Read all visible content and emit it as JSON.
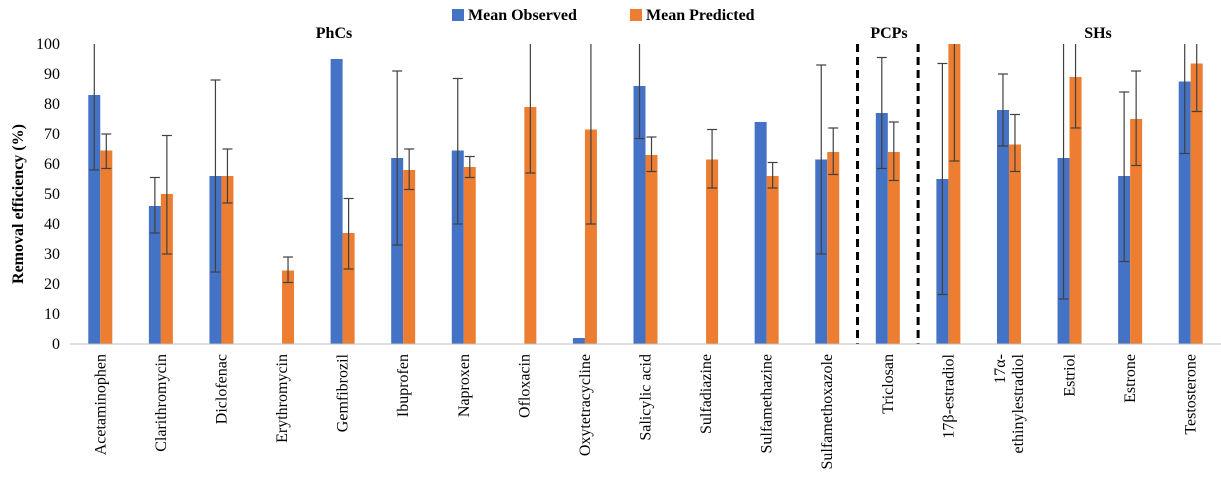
{
  "chart_data": {
    "type": "bar",
    "ylabel": "Removal efficiency (%)",
    "ylim": [
      0,
      100
    ],
    "yticks": [
      0,
      10,
      20,
      30,
      40,
      50,
      60,
      70,
      80,
      90,
      100
    ],
    "grid": false,
    "legend_position": "top",
    "categories": [
      "Acetaminophen",
      "Clarithromycin",
      "Diclofenac",
      "Erythromycin",
      "Gemfibrozil",
      "Ibuprofen",
      "Naproxen",
      "Ofloxacin",
      "Oxytetracycline",
      "Salicylic acid",
      "Sulfadiazine",
      "Sulfamethazine",
      "Sulfamethoxazole",
      "Triclosan",
      "17β-estradiol",
      "17α-ethinylestradiol",
      "Estriol",
      "Estrone",
      "Testosterone"
    ],
    "category_lines": [
      [
        "Acetaminophen"
      ],
      [
        "Clarithromycin"
      ],
      [
        "Diclofenac"
      ],
      [
        "Erythromycin"
      ],
      [
        "Gemfibrozil"
      ],
      [
        "Ibuprofen"
      ],
      [
        "Naproxen"
      ],
      [
        "Ofloxacin"
      ],
      [
        "Oxytetracycline"
      ],
      [
        "Salicylic acid"
      ],
      [
        "Sulfadiazine"
      ],
      [
        "Sulfamethazine"
      ],
      [
        "Sulfamethoxazole"
      ],
      [
        "Triclosan"
      ],
      [
        "17β-estradiol"
      ],
      [
        "17α-",
        "ethinylestradiol"
      ],
      [
        "Estriol"
      ],
      [
        "Estrone"
      ],
      [
        "Testosterone"
      ]
    ],
    "series": [
      {
        "name": "Mean Observed",
        "color": "#4472C4",
        "values": [
          83,
          46,
          56,
          null,
          95,
          62,
          64.5,
          null,
          2,
          86,
          null,
          74,
          61.5,
          77,
          55,
          78,
          62,
          56,
          87.5
        ],
        "error_low": [
          58,
          37,
          24,
          null,
          95,
          33,
          40,
          null,
          2,
          68.5,
          null,
          74,
          30,
          58.5,
          16.5,
          66,
          15,
          27.5,
          63.5
        ],
        "error_high": [
          100,
          55.5,
          88,
          null,
          95,
          91,
          88.5,
          null,
          2,
          100,
          null,
          74,
          93,
          95.5,
          93.5,
          90,
          100,
          84,
          100
        ]
      },
      {
        "name": "Mean Predicted",
        "color": "#ED7D31",
        "values": [
          64.5,
          50,
          56,
          24.5,
          37,
          58,
          59,
          79,
          71.5,
          63,
          61.5,
          56,
          64,
          64,
          100,
          66.5,
          89,
          75,
          93.5
        ],
        "error_low": [
          58.5,
          30,
          47,
          20.5,
          25,
          51.5,
          55.5,
          57,
          40,
          57.5,
          52,
          52,
          56.5,
          54.5,
          61,
          57.5,
          72,
          59.5,
          77.5
        ],
        "error_high": [
          70,
          69.5,
          65,
          29,
          48.5,
          65,
          62.5,
          100,
          100,
          69,
          71.5,
          60.5,
          72,
          74,
          100,
          76.5,
          100,
          91,
          100
        ]
      }
    ],
    "groups": [
      {
        "label": "PhCs",
        "start": 0,
        "end": 12
      },
      {
        "label": "PCPs",
        "start": 13,
        "end": 13
      },
      {
        "label": "SHs",
        "start": 14,
        "end": 18
      }
    ]
  }
}
